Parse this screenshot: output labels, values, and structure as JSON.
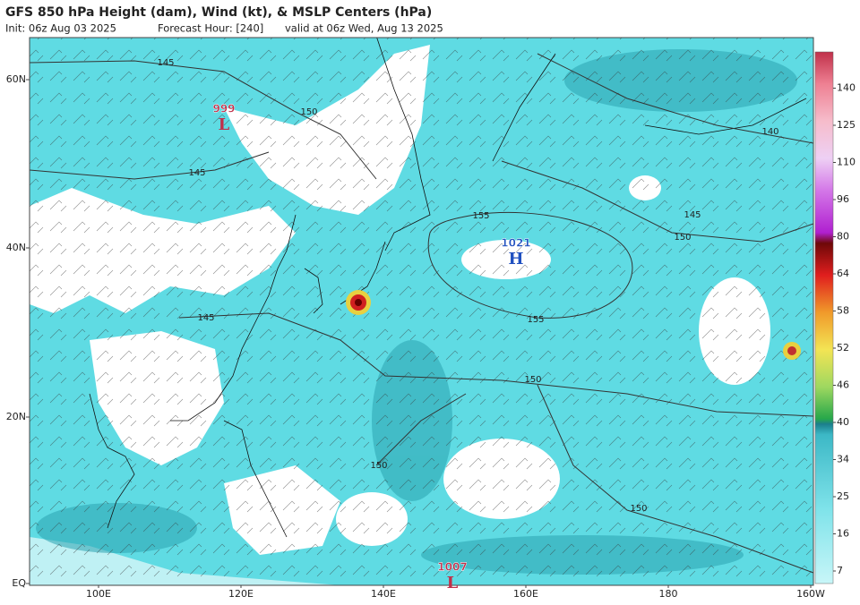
{
  "header": {
    "title": "GFS 850 hPa Height (dam), Wind (kt), & MSLP Centers (hPa)",
    "init": "Init: 06z Aug 03 2025",
    "forecast_hour": "Forecast Hour: [240]",
    "valid": "valid at 06z Wed, Aug 13 2025"
  },
  "map": {
    "lat_labels": [
      "60N",
      "40N",
      "20N",
      "EQ"
    ],
    "lon_labels": [
      "100E",
      "120E",
      "140E",
      "160E",
      "180",
      "160W"
    ],
    "pressure_centers": [
      {
        "value": 999,
        "symbol": "L"
      },
      {
        "value": 1021,
        "symbol": "H"
      },
      {
        "value": 1007,
        "symbol": "L"
      }
    ],
    "contour_labels": [
      145,
      150,
      145,
      145,
      155,
      155,
      150,
      150,
      150,
      145,
      150,
      140
    ]
  },
  "colorbar": {
    "ticks": [
      7,
      16,
      25,
      34,
      40,
      46,
      52,
      58,
      64,
      80,
      96,
      110,
      125,
      140
    ]
  }
}
